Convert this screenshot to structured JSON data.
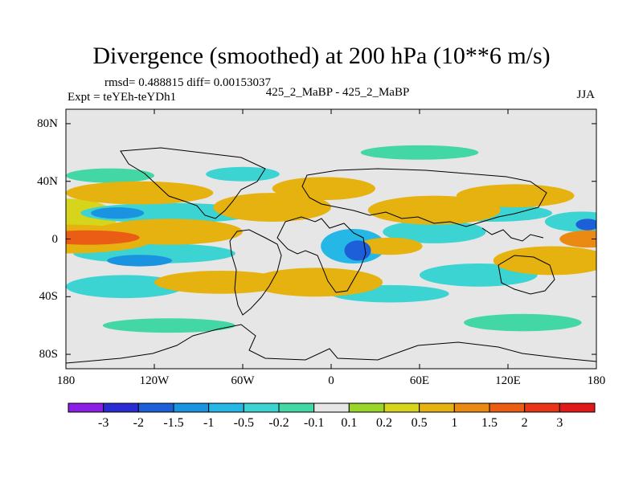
{
  "chart_data": {
    "type": "heatmap",
    "title": "Divergence (smoothed) at 200 hPa (10**6 m/s)",
    "stats": "rmsd= 0.488815  diff= 0.00153037",
    "experiment": "Expt = teYEh-teYDh1",
    "case": "425_2_MaBP - 425_2_MaBP",
    "season": "JJA",
    "x_range": [
      -180,
      180
    ],
    "y_range": [
      -90,
      90
    ],
    "x_ticks": [
      {
        "value": -180,
        "label": "180"
      },
      {
        "value": -120,
        "label": "120W"
      },
      {
        "value": -60,
        "label": "60W"
      },
      {
        "value": 0,
        "label": "0"
      },
      {
        "value": 60,
        "label": "60E"
      },
      {
        "value": 120,
        "label": "120E"
      },
      {
        "value": 180,
        "label": "180"
      }
    ],
    "y_ticks": [
      {
        "value": 80,
        "label": "80N"
      },
      {
        "value": 40,
        "label": "40N"
      },
      {
        "value": 0,
        "label": "0"
      },
      {
        "value": -40,
        "label": "40S"
      },
      {
        "value": -80,
        "label": "80S"
      }
    ],
    "colorbar": {
      "levels": [
        "-3",
        "-2",
        "-1.5",
        "-1",
        "-0.5",
        "-0.2",
        "-0.1",
        "0.1",
        "0.2",
        "0.5",
        "1",
        "1.5",
        "2",
        "3"
      ],
      "colors": [
        "#8b1fe6",
        "#2b2bd6",
        "#1c5fd8",
        "#1a94e0",
        "#25b7e5",
        "#3cd3d3",
        "#43d7a6",
        "#e6e6e6",
        "#9ad62a",
        "#d7d41c",
        "#e5b20f",
        "#ea8a12",
        "#eb5d14",
        "#e83517",
        "#e01a1a"
      ]
    },
    "field_blobs": [
      {
        "lon": -180,
        "lat": 15,
        "rx": 35,
        "ry": 13,
        "value": 0.3
      },
      {
        "lon": -180,
        "lat": 0,
        "rx": 60,
        "ry": 10,
        "value": 0.8
      },
      {
        "lon": -165,
        "lat": 1,
        "rx": 35,
        "ry": 5,
        "value": 1.6
      },
      {
        "lon": -110,
        "lat": 5,
        "rx": 50,
        "ry": 9,
        "value": 0.8
      },
      {
        "lon": -130,
        "lat": 32,
        "rx": 50,
        "ry": 8,
        "value": 0.6
      },
      {
        "lon": -110,
        "lat": 18,
        "rx": 60,
        "ry": 7,
        "value": -0.3
      },
      {
        "lon": -145,
        "lat": 18,
        "rx": 18,
        "ry": 4,
        "value": -1.2
      },
      {
        "lon": -120,
        "lat": -10,
        "rx": 55,
        "ry": 7,
        "value": -0.3
      },
      {
        "lon": -130,
        "lat": -15,
        "rx": 22,
        "ry": 4,
        "value": -1.1
      },
      {
        "lon": -140,
        "lat": -33,
        "rx": 40,
        "ry": 8,
        "value": -0.3
      },
      {
        "lon": -75,
        "lat": -30,
        "rx": 45,
        "ry": 8,
        "value": 0.5
      },
      {
        "lon": -150,
        "lat": 44,
        "rx": 30,
        "ry": 5,
        "value": -0.2
      },
      {
        "lon": -40,
        "lat": 22,
        "rx": 40,
        "ry": 10,
        "value": 0.8
      },
      {
        "lon": -5,
        "lat": 35,
        "rx": 35,
        "ry": 8,
        "value": 0.6
      },
      {
        "lon": -60,
        "lat": 45,
        "rx": 25,
        "ry": 5,
        "value": -0.3
      },
      {
        "lon": -10,
        "lat": -30,
        "rx": 45,
        "ry": 10,
        "value": 0.9
      },
      {
        "lon": 15,
        "lat": -5,
        "rx": 22,
        "ry": 12,
        "value": -0.8
      },
      {
        "lon": 18,
        "lat": -8,
        "rx": 9,
        "ry": 7,
        "value": -2.0
      },
      {
        "lon": 40,
        "lat": -5,
        "rx": 22,
        "ry": 6,
        "value": 0.8
      },
      {
        "lon": 70,
        "lat": 5,
        "rx": 35,
        "ry": 8,
        "value": -0.3
      },
      {
        "lon": 70,
        "lat": 20,
        "rx": 45,
        "ry": 10,
        "value": 0.6
      },
      {
        "lon": 110,
        "lat": 18,
        "rx": 40,
        "ry": 6,
        "value": -0.3
      },
      {
        "lon": 125,
        "lat": 30,
        "rx": 40,
        "ry": 8,
        "value": 0.7
      },
      {
        "lon": 170,
        "lat": 12,
        "rx": 25,
        "ry": 7,
        "value": -0.4
      },
      {
        "lon": 174,
        "lat": 10,
        "rx": 8,
        "ry": 4,
        "value": -1.8
      },
      {
        "lon": 175,
        "lat": 0,
        "rx": 20,
        "ry": 6,
        "value": 1.2
      },
      {
        "lon": 150,
        "lat": -15,
        "rx": 40,
        "ry": 10,
        "value": 0.7
      },
      {
        "lon": 100,
        "lat": -25,
        "rx": 40,
        "ry": 8,
        "value": -0.3
      },
      {
        "lon": 40,
        "lat": -38,
        "rx": 40,
        "ry": 6,
        "value": -0.3
      },
      {
        "lon": -110,
        "lat": -60,
        "rx": 45,
        "ry": 5,
        "value": -0.2
      },
      {
        "lon": 130,
        "lat": -58,
        "rx": 40,
        "ry": 6,
        "value": -0.2
      },
      {
        "lon": 60,
        "lat": 60,
        "rx": 40,
        "ry": 5,
        "value": -0.2
      }
    ]
  }
}
